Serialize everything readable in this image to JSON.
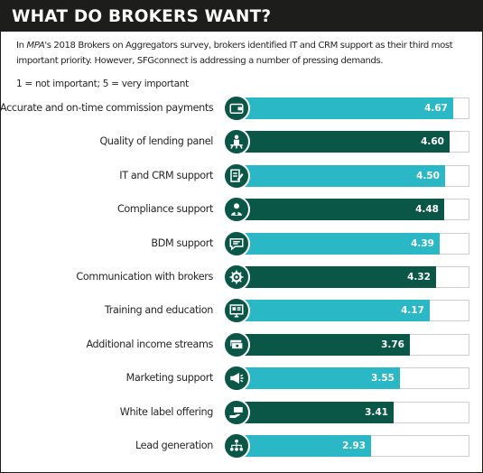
{
  "header": {
    "title": "WHAT DO BROKERS WANT?"
  },
  "intro": {
    "text_before": "In ",
    "publication": "MPA",
    "text_after": "'s 2018 Brokers on Aggregators survey, brokers identified IT and CRM support as their third most important priority. However, SFGconnect is addressing a number of pressing demands."
  },
  "scale_note": "1 = not important; 5 = very important",
  "colors": {
    "teal": "#2ab8c6",
    "dark_green": "#0a5748",
    "header_bg": "#1d1d1b"
  },
  "chart_data": {
    "type": "bar",
    "orientation": "horizontal",
    "xlim": [
      0,
      5
    ],
    "categories": [
      "Accurate and on-time commission payments",
      "Quality of lending panel",
      "IT and CRM support",
      "Compliance support",
      "BDM support",
      "Communication with brokers",
      "Training and education",
      "Additional income streams",
      "Marketing support",
      "White label offering",
      "Lead generation"
    ],
    "values": [
      4.67,
      4.6,
      4.5,
      4.48,
      4.39,
      4.32,
      4.17,
      3.76,
      3.55,
      3.41,
      2.93
    ],
    "value_labels": [
      "4.67",
      "4.60",
      "4.50",
      "4.48",
      "4.39",
      "4.32",
      "4.17",
      "3.76",
      "3.55",
      "3.41",
      "2.93"
    ],
    "bar_colors": [
      "teal",
      "dark_green",
      "teal",
      "dark_green",
      "teal",
      "dark_green",
      "teal",
      "dark_green",
      "teal",
      "dark_green",
      "teal"
    ],
    "icons": [
      "wallet-icon",
      "presenter-icon",
      "document-pen-icon",
      "person-badge-icon",
      "speech-bubble-icon",
      "gear-head-icon",
      "monitor-card-icon",
      "money-stack-icon",
      "megaphone-icon",
      "hand-card-icon",
      "people-network-icon"
    ]
  }
}
